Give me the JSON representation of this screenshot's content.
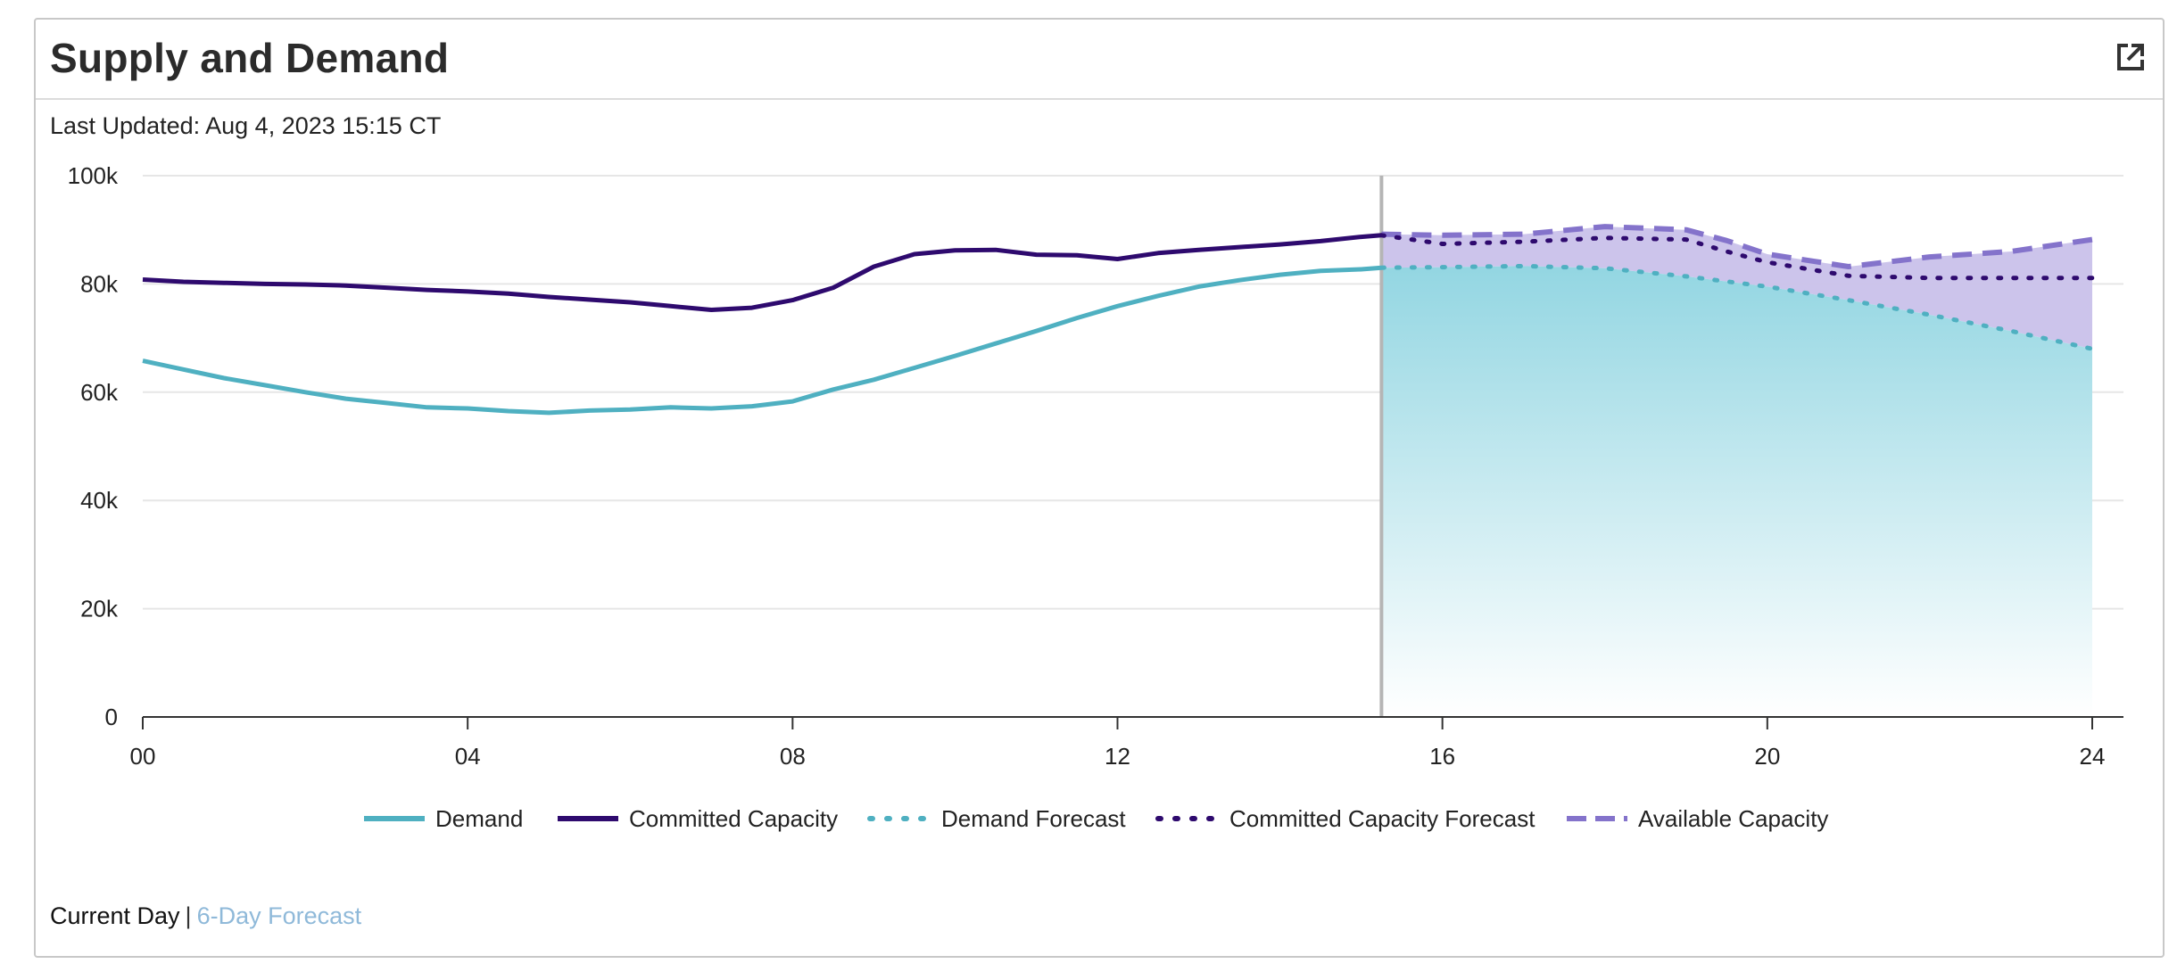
{
  "header": {
    "title": "Supply and Demand",
    "popout_icon": "external-link-icon"
  },
  "updated": "Last Updated: Aug 4, 2023 15:15 CT",
  "footer": {
    "current_day": "Current Day",
    "separator": "|",
    "forecast_link": "6-Day Forecast"
  },
  "colors": {
    "demand": "#4fb0c1",
    "committed": "#2e0a6e",
    "available": "#8473cb",
    "available_fill": "#c9c1ea",
    "demand_fill_top": "#93d6e2",
    "now_line": "#b5b5b5"
  },
  "chart_data": {
    "type": "line",
    "title": "",
    "xlabel": "",
    "ylabel": "",
    "xlim": [
      0,
      24
    ],
    "ylim": [
      0,
      100000
    ],
    "x_ticks": [
      0,
      4,
      8,
      12,
      16,
      20,
      24
    ],
    "x_tick_labels": [
      "00",
      "04",
      "08",
      "12",
      "16",
      "20",
      "24"
    ],
    "y_ticks": [
      0,
      20000,
      40000,
      60000,
      80000,
      100000
    ],
    "y_tick_labels": [
      "0",
      "20k",
      "40k",
      "60k",
      "80k",
      "100k"
    ],
    "grid": "horizontal",
    "legend": "bottom",
    "current_time": 15.25,
    "series": [
      {
        "name": "Demand",
        "style": "solid",
        "x": [
          0,
          0.5,
          1,
          1.5,
          2,
          2.5,
          3,
          3.5,
          4,
          4.5,
          5,
          5.5,
          6,
          6.5,
          7,
          7.5,
          8,
          8.5,
          9,
          9.5,
          10,
          10.5,
          11,
          11.5,
          12,
          12.5,
          13,
          13.5,
          14,
          14.5,
          15,
          15.25
        ],
        "y": [
          65800,
          64200,
          62600,
          61300,
          60000,
          58800,
          58000,
          57200,
          57000,
          56500,
          56200,
          56600,
          56800,
          57200,
          57000,
          57400,
          58300,
          60500,
          62300,
          64500,
          66700,
          69000,
          71300,
          73700,
          75900,
          77800,
          79500,
          80700,
          81700,
          82400,
          82700,
          83000
        ]
      },
      {
        "name": "Committed Capacity",
        "style": "solid",
        "x": [
          0,
          0.5,
          1,
          1.5,
          2,
          2.5,
          3,
          3.5,
          4,
          4.5,
          5,
          5.5,
          6,
          6.5,
          7,
          7.5,
          8,
          8.5,
          9,
          9.5,
          10,
          10.5,
          11,
          11.5,
          12,
          12.5,
          13,
          13.5,
          14,
          14.5,
          15,
          15.25
        ],
        "y": [
          80800,
          80400,
          80200,
          80000,
          79900,
          79700,
          79300,
          78900,
          78600,
          78200,
          77600,
          77100,
          76600,
          75900,
          75200,
          75600,
          77000,
          79300,
          83200,
          85500,
          86200,
          86300,
          85400,
          85300,
          84600,
          85700,
          86300,
          86800,
          87300,
          87900,
          88700,
          89000
        ]
      },
      {
        "name": "Demand Forecast",
        "style": "dotted",
        "x": [
          15.25,
          16,
          17,
          18,
          19,
          20,
          21,
          22,
          23,
          24
        ],
        "y": [
          83000,
          83100,
          83300,
          82900,
          81400,
          79500,
          77000,
          74300,
          71300,
          68000
        ]
      },
      {
        "name": "Committed Capacity Forecast",
        "style": "dotted",
        "x": [
          15.25,
          16,
          17,
          18,
          19,
          19.5,
          20,
          21,
          22,
          23,
          24
        ],
        "y": [
          89000,
          87400,
          87800,
          88500,
          88200,
          86000,
          84000,
          81500,
          81100,
          81100,
          81100
        ]
      },
      {
        "name": "Available Capacity",
        "style": "dashed",
        "x": [
          15.25,
          16,
          17,
          18,
          19,
          19.5,
          20,
          21,
          22,
          23,
          24
        ],
        "y": [
          89200,
          89000,
          89200,
          90600,
          90000,
          88000,
          85500,
          83200,
          85000,
          86000,
          88200
        ]
      }
    ]
  }
}
